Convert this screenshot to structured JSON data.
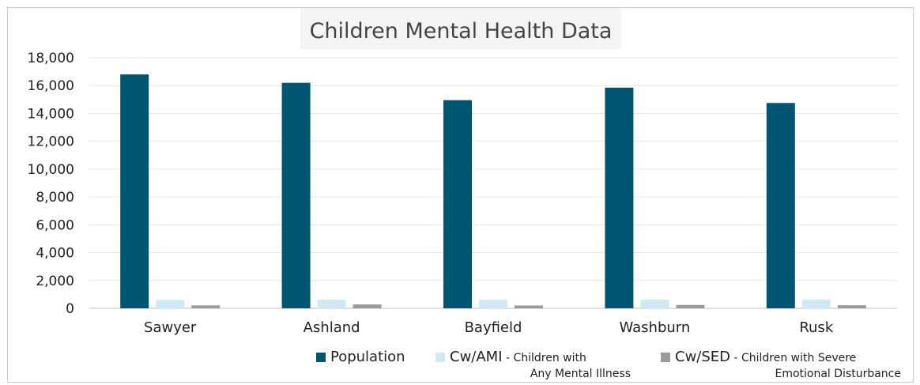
{
  "chart_data": {
    "type": "bar",
    "title": "Children Mental Health Data",
    "categories": [
      "Sawyer",
      "Ashland",
      "Bayfield",
      "Washburn",
      "Rusk"
    ],
    "series": [
      {
        "name": "Population",
        "values": [
          16800,
          16200,
          14950,
          15850,
          14750
        ],
        "color": "#005670"
      },
      {
        "name": "Cw/AMI - Children with Any Mental Illness",
        "values": [
          600,
          620,
          610,
          620,
          620
        ],
        "color": "#cfeaf2"
      },
      {
        "name": "Cw/SED - Children with Severe Emotional Disturbance",
        "values": [
          210,
          280,
          200,
          240,
          220
        ],
        "color": "#9a9a9a"
      }
    ],
    "ylim": [
      0,
      18000
    ],
    "yticks": [
      0,
      2000,
      4000,
      6000,
      8000,
      10000,
      12000,
      14000,
      16000,
      18000
    ],
    "ytick_labels": [
      "0",
      "2,000",
      "4,000",
      "6,000",
      "8,000",
      "10,000",
      "12,000",
      "14,000",
      "16,000",
      "18,000"
    ],
    "grid": true,
    "legend_position": "bottom-right"
  },
  "legend": {
    "population": "Population",
    "ami_main": "Cw/AMI",
    "ami_dash": " - Children with",
    "ami_second": "Any Mental Illness",
    "sed_main": "Cw/SED",
    "sed_dash": " - Children with Severe",
    "sed_second": "Emotional Disturbance"
  }
}
